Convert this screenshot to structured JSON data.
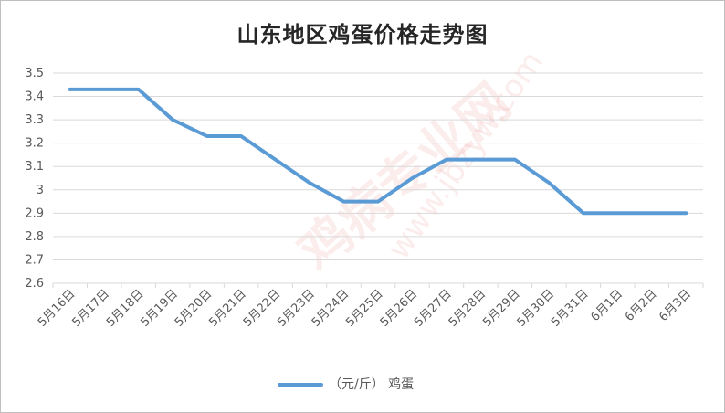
{
  "chart_data": {
    "type": "line",
    "title": "山东地区鸡蛋价格走势图",
    "xlabel": "",
    "ylabel": "",
    "ylim": [
      2.6,
      3.5
    ],
    "y_ticks": [
      "3.5",
      "3.4",
      "3.3",
      "3.2",
      "3.1",
      "3",
      "2.9",
      "2.8",
      "2.7",
      "2.6"
    ],
    "categories": [
      "5月16日",
      "5月17日",
      "5月18日",
      "5月19日",
      "5月20日",
      "5月21日",
      "5月22日",
      "5月23日",
      "5月24日",
      "5月25日",
      "5月26日",
      "5月27日",
      "5月28日",
      "5月29日",
      "5月30日",
      "5月31日",
      "6月1日",
      "6月2日",
      "6月3日"
    ],
    "series": [
      {
        "name": "（元/斤） 鸡蛋",
        "color": "#5b9bd5",
        "values": [
          3.43,
          3.43,
          3.43,
          3.3,
          3.23,
          3.23,
          3.13,
          3.03,
          2.95,
          2.95,
          3.05,
          3.13,
          3.13,
          3.13,
          3.03,
          2.9,
          2.9,
          2.9,
          2.9
        ]
      }
    ],
    "grid": true,
    "legend_position": "bottom",
    "watermark": "鸡病专业网 www.jbzyw.com"
  }
}
